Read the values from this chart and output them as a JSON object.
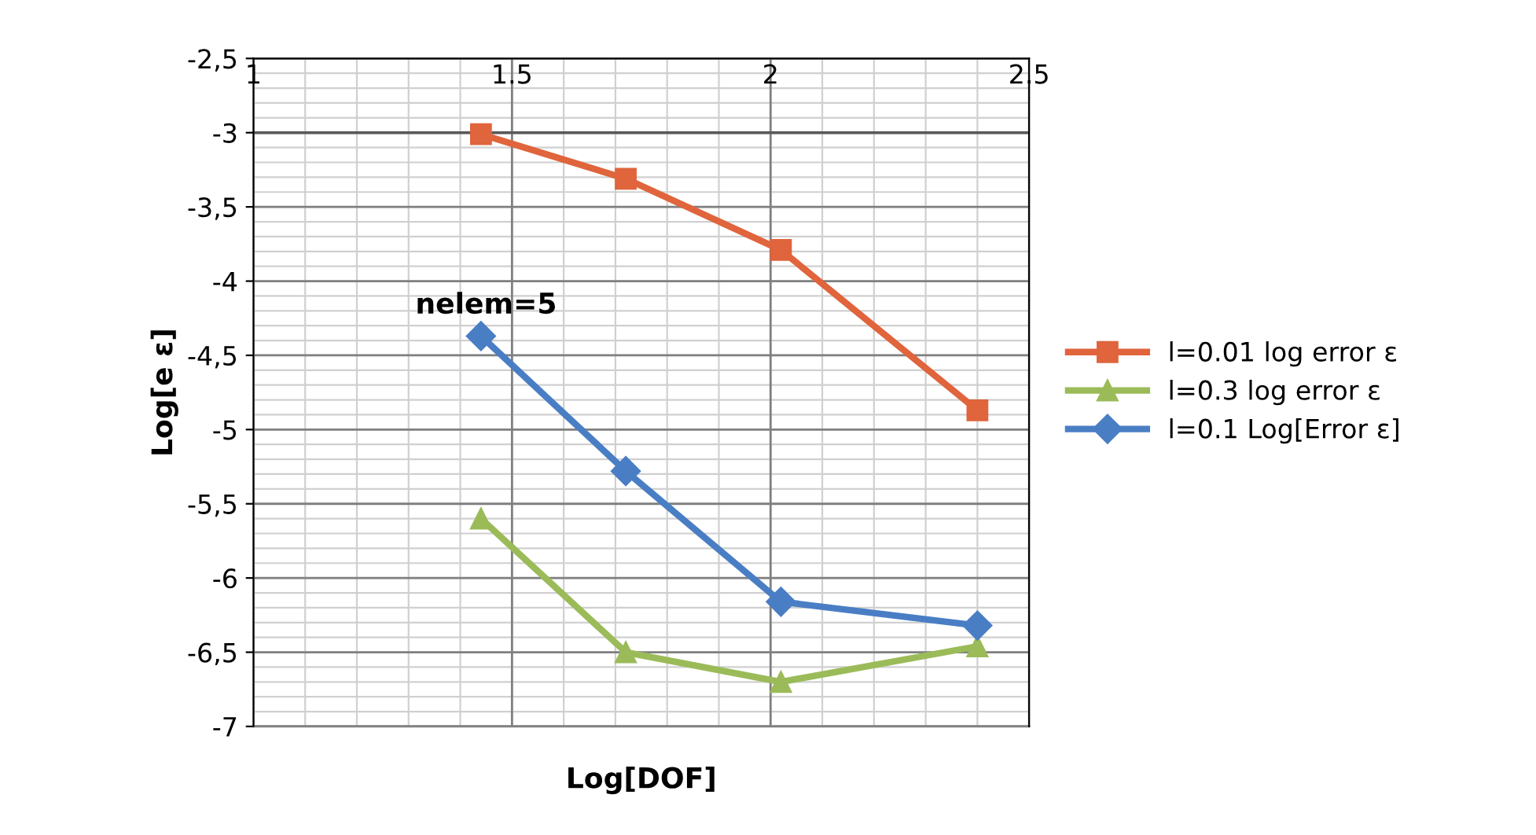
{
  "chart_data": {
    "type": "line",
    "xlabel": "Log[DOF]",
    "ylabel": "Log[e ε]",
    "x": [
      1.44,
      1.72,
      2.02,
      2.4
    ],
    "series": [
      {
        "name": "l=0.01 log error ε",
        "color": "#e0643c",
        "marker": "square",
        "values": [
          -3.01,
          -3.31,
          -3.79,
          -4.87
        ]
      },
      {
        "name": "l=0.3 log error ε",
        "color": "#9bbb59",
        "marker": "triangle",
        "values": [
          -5.6,
          -6.5,
          -6.7,
          -6.46
        ]
      },
      {
        "name": "l=0.1 Log[Error ε]",
        "color": "#4a7ec4",
        "marker": "diamond",
        "values": [
          -4.37,
          -5.28,
          -6.16,
          -6.32
        ]
      }
    ],
    "xlim": [
      1,
      2.5
    ],
    "xticks": [
      1,
      1.5,
      2,
      2.5
    ],
    "ylim": [
      -7,
      -2.5
    ],
    "yticks": [
      {
        "value": -2.5,
        "label": "-2,5"
      },
      {
        "value": -3,
        "label": "-3"
      },
      {
        "value": -3.5,
        "label": "-3,5"
      },
      {
        "value": -4,
        "label": "-4"
      },
      {
        "value": -4.5,
        "label": "-4,5"
      },
      {
        "value": -5,
        "label": "-5"
      },
      {
        "value": -5.5,
        "label": "-5,5"
      },
      {
        "value": -6,
        "label": "-6"
      },
      {
        "value": -6.5,
        "label": "-6,5"
      },
      {
        "value": -7,
        "label": "-7"
      }
    ],
    "annotations": [
      "nelem=5"
    ],
    "ref_lines": [
      {
        "axis": "y",
        "value": -3,
        "color": "#595959"
      }
    ],
    "grid": true,
    "legend": "right"
  }
}
